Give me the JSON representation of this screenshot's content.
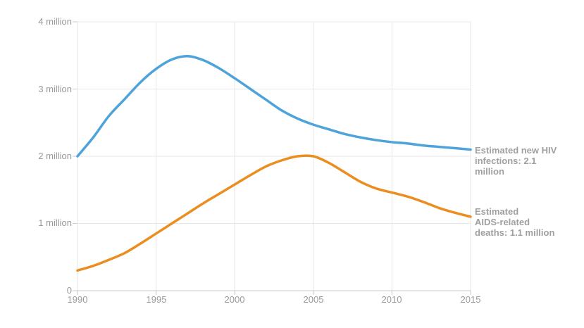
{
  "chart_data": {
    "type": "line",
    "x": [
      1990,
      1991,
      1992,
      1993,
      1994,
      1995,
      1996,
      1997,
      1998,
      1999,
      2000,
      2001,
      2002,
      2003,
      2004,
      2005,
      2006,
      2007,
      2008,
      2009,
      2010,
      2011,
      2012,
      2013,
      2014,
      2015
    ],
    "series": [
      {
        "name": "Estimated new HIV infections",
        "color": "#4DA3DA",
        "values": [
          2.0,
          2.28,
          2.6,
          2.85,
          3.1,
          3.3,
          3.44,
          3.49,
          3.43,
          3.31,
          3.16,
          3.0,
          2.84,
          2.68,
          2.56,
          2.47,
          2.4,
          2.33,
          2.28,
          2.24,
          2.21,
          2.19,
          2.16,
          2.14,
          2.12,
          2.1
        ]
      },
      {
        "name": "Estimated AIDS-related deaths",
        "color": "#EB8D1F",
        "values": [
          0.3,
          0.37,
          0.46,
          0.56,
          0.7,
          0.85,
          1.0,
          1.15,
          1.3,
          1.44,
          1.58,
          1.72,
          1.85,
          1.94,
          2.0,
          2.0,
          1.9,
          1.76,
          1.62,
          1.52,
          1.46,
          1.4,
          1.32,
          1.23,
          1.16,
          1.1
        ]
      }
    ],
    "title": "",
    "xlabel": "",
    "ylabel": "",
    "xlim": [
      1990,
      2015
    ],
    "ylim": [
      0,
      4
    ],
    "grid": true,
    "legend_position": "right-end-annotations",
    "x_ticks": [
      {
        "value": 1990,
        "label": "1990"
      },
      {
        "value": 1995,
        "label": "1995"
      },
      {
        "value": 2000,
        "label": "2000"
      },
      {
        "value": 2005,
        "label": "2005"
      },
      {
        "value": 2010,
        "label": "2010"
      },
      {
        "value": 2015,
        "label": "2015"
      }
    ],
    "y_ticks": [
      {
        "value": 4,
        "label": "4 million"
      },
      {
        "value": 3,
        "label": "3 million"
      },
      {
        "value": 2,
        "label": "2 million"
      },
      {
        "value": 1,
        "label": "1 million"
      },
      {
        "value": 0,
        "label": "0"
      }
    ],
    "annotations": [
      {
        "series": "Estimated new HIV infections",
        "lines": [
          "Estimated new HIV",
          "infections: 2.1",
          "million"
        ]
      },
      {
        "series": "Estimated AIDS-related deaths",
        "lines": [
          "Estimated",
          "AIDS-related",
          "deaths: 1.1 million"
        ]
      }
    ],
    "colors": {
      "grid": "#e7e7e7",
      "axis": "#c9c9c9",
      "tick_label": "#999999",
      "annotation_text": "#a0a0a0"
    }
  }
}
